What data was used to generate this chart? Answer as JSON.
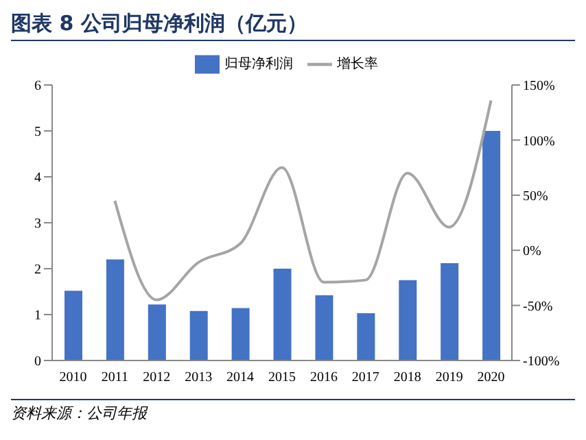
{
  "chart_data": {
    "type": "bar",
    "title": "图表 8   公司归母净利润（亿元）",
    "categories": [
      "2010",
      "2011",
      "2012",
      "2013",
      "2014",
      "2015",
      "2016",
      "2017",
      "2018",
      "2019",
      "2020"
    ],
    "series": [
      {
        "name": "归母净利润",
        "color": "#4472c4",
        "values": [
          1.52,
          2.2,
          1.22,
          1.08,
          1.14,
          2.0,
          1.42,
          1.03,
          1.75,
          2.12,
          5.0
        ]
      },
      {
        "name": "增长率",
        "type": "line",
        "axis": "y2",
        "color": "#a5a5a5",
        "values": [
          null,
          45,
          -45,
          -11,
          6,
          75,
          -29,
          -27,
          70,
          21,
          136
        ]
      }
    ],
    "ylim": [
      0,
      6
    ],
    "yticks": [
      0,
      1,
      2,
      3,
      4,
      5,
      6
    ],
    "y2lim": [
      -100,
      150
    ],
    "y2ticks": [
      {
        "value": -100,
        "label": "-100%"
      },
      {
        "value": -50,
        "label": "-50%"
      },
      {
        "value": 0,
        "label": "0%"
      },
      {
        "value": 50,
        "label": "50%"
      },
      {
        "value": 100,
        "label": "100%"
      },
      {
        "value": 150,
        "label": "150%"
      }
    ],
    "legend": "top",
    "marker": "none",
    "annotations": [
      "资料来源：公司年报"
    ]
  }
}
